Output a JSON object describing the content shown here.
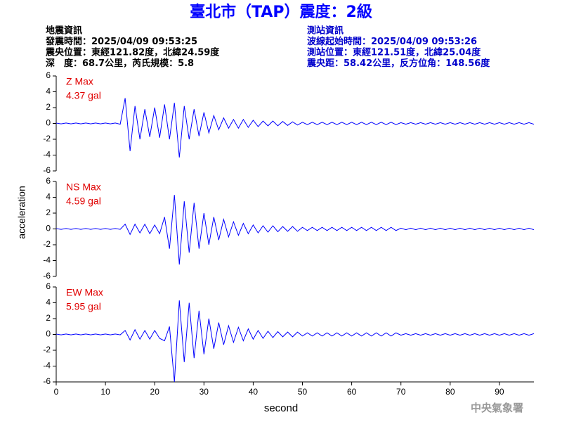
{
  "title": "臺北市（TAP）震度：2級",
  "info_left": [
    "地震資訊",
    "發震時間：2025/04/09 09:53:25",
    "震央位置：東經121.82度，北緯24.59度",
    "深　度：68.7公里，芮氏規模：5.8"
  ],
  "info_right": [
    "測站資訊",
    "波線起始時間：2025/04/09 09:53:26",
    "測站位置：東經121.51度，北緯25.04度",
    "震央距：58.42公里，反方位角：148.56度"
  ],
  "ylabel": "acceleration",
  "xlabel": "second",
  "watermark": "中央氣象署",
  "chart_data": [
    {
      "type": "line",
      "annotation": "4.37 gal",
      "x": [
        0,
        1,
        2,
        3,
        4,
        5,
        6,
        7,
        8,
        9,
        10,
        11,
        12,
        13,
        14,
        15,
        16,
        17,
        18,
        19,
        20,
        21,
        22,
        23,
        24,
        25,
        26,
        27,
        28,
        29,
        30,
        31,
        32,
        33,
        34,
        35,
        36,
        37,
        38,
        39,
        40,
        41,
        42,
        43,
        44,
        45,
        46,
        47,
        48,
        49,
        50,
        51,
        52,
        53,
        54,
        55,
        56,
        57,
        58,
        59,
        60,
        61,
        62,
        63,
        64,
        65,
        66,
        67,
        68,
        69,
        70,
        71,
        72,
        73,
        74,
        75,
        76,
        77,
        78,
        79,
        80,
        81,
        82,
        83,
        84,
        85,
        86,
        87,
        88,
        89,
        90,
        91,
        92,
        93,
        94,
        95,
        96,
        97
      ],
      "series": [
        {
          "name": "Z Max",
          "color": "#0000ff",
          "values": [
            0.05,
            -0.05,
            0.05,
            -0.05,
            0.05,
            -0.05,
            0.05,
            -0.05,
            0.05,
            -0.05,
            0.05,
            -0.05,
            0.05,
            -0.1,
            3.2,
            -3.5,
            2.2,
            -2.0,
            1.8,
            -1.7,
            2.0,
            -1.8,
            2.4,
            -2.0,
            2.6,
            -4.3,
            2.2,
            -2.0,
            1.8,
            -1.6,
            1.4,
            -1.2,
            1.0,
            -0.8,
            0.7,
            -0.6,
            0.5,
            -0.6,
            0.5,
            -0.5,
            0.4,
            -0.4,
            0.3,
            -0.3,
            0.3,
            -0.3,
            0.25,
            -0.25,
            0.2,
            -0.2,
            0.15,
            -0.15,
            0.15,
            -0.15,
            0.15,
            -0.15,
            0.15,
            -0.15,
            0.15,
            -0.15,
            0.15,
            -0.15,
            0.15,
            -0.15,
            0.15,
            -0.15,
            0.15,
            -0.15,
            0.15,
            -0.15,
            0.1,
            -0.1,
            0.1,
            -0.1,
            0.1,
            -0.1,
            0.1,
            -0.1,
            0.1,
            -0.1,
            0.1,
            -0.1,
            0.1,
            -0.1,
            0.1,
            -0.1,
            0.1,
            -0.1,
            0.1,
            -0.1,
            0.1,
            -0.1,
            0.1,
            -0.1,
            0.1,
            -0.1,
            0.1,
            -0.1
          ]
        }
      ],
      "xlim": [
        0,
        97
      ],
      "ylim": [
        -6,
        6
      ],
      "yticks": [
        -6,
        -4,
        -2,
        0,
        2,
        4,
        6
      ]
    },
    {
      "type": "line",
      "annotation": "4.59 gal",
      "x": [
        0,
        1,
        2,
        3,
        4,
        5,
        6,
        7,
        8,
        9,
        10,
        11,
        12,
        13,
        14,
        15,
        16,
        17,
        18,
        19,
        20,
        21,
        22,
        23,
        24,
        25,
        26,
        27,
        28,
        29,
        30,
        31,
        32,
        33,
        34,
        35,
        36,
        37,
        38,
        39,
        40,
        41,
        42,
        43,
        44,
        45,
        46,
        47,
        48,
        49,
        50,
        51,
        52,
        53,
        54,
        55,
        56,
        57,
        58,
        59,
        60,
        61,
        62,
        63,
        64,
        65,
        66,
        67,
        68,
        69,
        70,
        71,
        72,
        73,
        74,
        75,
        76,
        77,
        78,
        79,
        80,
        81,
        82,
        83,
        84,
        85,
        86,
        87,
        88,
        89,
        90,
        91,
        92,
        93,
        94,
        95,
        96,
        97
      ],
      "series": [
        {
          "name": "NS Max",
          "color": "#0000ff",
          "values": [
            0.05,
            -0.05,
            0.05,
            -0.05,
            0.05,
            -0.05,
            0.05,
            -0.05,
            0.05,
            -0.05,
            0.05,
            -0.05,
            0.05,
            -0.05,
            0.6,
            -0.7,
            0.6,
            -0.5,
            0.6,
            -0.6,
            0.5,
            -0.6,
            1.5,
            -2.5,
            4.3,
            -4.5,
            3.5,
            -3.0,
            3.3,
            -2.5,
            2.0,
            -2.0,
            1.5,
            -1.4,
            1.2,
            -1.0,
            0.9,
            -0.8,
            0.7,
            -0.6,
            0.5,
            -0.5,
            0.4,
            -0.4,
            0.4,
            -0.35,
            0.3,
            -0.3,
            0.3,
            -0.3,
            0.2,
            -0.2,
            0.2,
            -0.2,
            0.2,
            -0.2,
            0.2,
            -0.2,
            0.2,
            -0.2,
            0.2,
            -0.2,
            0.2,
            -0.2,
            0.2,
            -0.2,
            0.2,
            -0.2,
            0.2,
            -0.2,
            0.1,
            -0.1,
            0.1,
            -0.1,
            0.1,
            -0.1,
            0.1,
            -0.1,
            0.1,
            -0.1,
            0.1,
            -0.1,
            0.1,
            -0.1,
            0.1,
            -0.1,
            0.1,
            -0.1,
            0.1,
            -0.1,
            0.1,
            -0.1,
            0.1,
            -0.1,
            0.1,
            -0.1,
            0.1,
            -0.1
          ]
        }
      ],
      "xlim": [
        0,
        97
      ],
      "ylim": [
        -6,
        6
      ],
      "yticks": [
        -6,
        -4,
        -2,
        0,
        2,
        4,
        6
      ]
    },
    {
      "type": "line",
      "annotation": "5.95 gal",
      "x": [
        0,
        1,
        2,
        3,
        4,
        5,
        6,
        7,
        8,
        9,
        10,
        11,
        12,
        13,
        14,
        15,
        16,
        17,
        18,
        19,
        20,
        21,
        22,
        23,
        24,
        25,
        26,
        27,
        28,
        29,
        30,
        31,
        32,
        33,
        34,
        35,
        36,
        37,
        38,
        39,
        40,
        41,
        42,
        43,
        44,
        45,
        46,
        47,
        48,
        49,
        50,
        51,
        52,
        53,
        54,
        55,
        56,
        57,
        58,
        59,
        60,
        61,
        62,
        63,
        64,
        65,
        66,
        67,
        68,
        69,
        70,
        71,
        72,
        73,
        74,
        75,
        76,
        77,
        78,
        79,
        80,
        81,
        82,
        83,
        84,
        85,
        86,
        87,
        88,
        89,
        90,
        91,
        92,
        93,
        94,
        95,
        96,
        97
      ],
      "series": [
        {
          "name": "EW Max",
          "color": "#0000ff",
          "values": [
            0.05,
            -0.05,
            0.05,
            -0.05,
            0.05,
            -0.05,
            0.05,
            -0.05,
            0.05,
            -0.05,
            0.05,
            -0.05,
            0.05,
            -0.05,
            0.5,
            -0.7,
            0.6,
            -0.6,
            0.5,
            -0.6,
            0.5,
            -0.5,
            -0.8,
            1.0,
            -6.0,
            4.3,
            -3.5,
            4.0,
            -3.0,
            3.0,
            -2.5,
            2.0,
            -1.8,
            1.5,
            -1.3,
            1.1,
            -1.0,
            0.9,
            -0.8,
            0.7,
            -0.6,
            0.5,
            -0.5,
            0.4,
            -0.4,
            0.35,
            -0.3,
            0.3,
            -0.3,
            0.3,
            -0.2,
            0.2,
            -0.2,
            0.2,
            -0.2,
            0.2,
            -0.2,
            0.2,
            -0.2,
            0.2,
            -0.2,
            0.2,
            -0.2,
            0.2,
            -0.2,
            0.2,
            -0.2,
            0.2,
            -0.2,
            0.2,
            -0.1,
            0.1,
            -0.1,
            0.1,
            -0.1,
            0.1,
            -0.1,
            0.1,
            -0.1,
            0.1,
            -0.1,
            0.1,
            -0.1,
            0.1,
            -0.1,
            0.1,
            -0.1,
            0.1,
            -0.1,
            0.1,
            -0.1,
            0.1,
            -0.1,
            0.1,
            -0.1,
            0.1,
            -0.1,
            0.1
          ]
        }
      ],
      "xlim": [
        0,
        97
      ],
      "ylim": [
        -6,
        6
      ],
      "yticks": [
        -6,
        -4,
        -2,
        0,
        2,
        4,
        6
      ],
      "xticks": [
        0,
        10,
        20,
        30,
        40,
        50,
        60,
        70,
        80,
        90
      ]
    }
  ]
}
